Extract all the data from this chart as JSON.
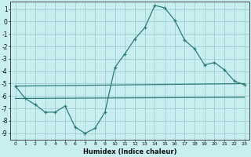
{
  "xlabel": "Humidex (Indice chaleur)",
  "background_color": "#c8eef0",
  "grid_color": "#9ecece",
  "line_color": "#2e7d72",
  "xlim": [
    -0.5,
    23.5
  ],
  "ylim": [
    -9.5,
    1.6
  ],
  "yticks": [
    1,
    0,
    -1,
    -2,
    -3,
    -4,
    -5,
    -6,
    -7,
    -8,
    -9
  ],
  "xticks": [
    0,
    1,
    2,
    3,
    4,
    5,
    6,
    7,
    8,
    9,
    10,
    11,
    12,
    13,
    14,
    15,
    16,
    17,
    18,
    19,
    20,
    21,
    22,
    23
  ],
  "line1_x": [
    0,
    1,
    2,
    3,
    4,
    5,
    6,
    7,
    8,
    9,
    10,
    11,
    12,
    13,
    14,
    15,
    16,
    17,
    18,
    19,
    20,
    21,
    22,
    23
  ],
  "line1_y": [
    -5.2,
    -6.2,
    -6.7,
    -7.3,
    -7.3,
    -6.8,
    -8.5,
    -9.0,
    -8.6,
    -7.3,
    -3.7,
    -2.6,
    -1.4,
    -0.5,
    1.3,
    1.1,
    0.1,
    -1.5,
    -2.2,
    -3.5,
    -3.3,
    -3.9,
    -4.8,
    -5.1
  ],
  "line2_x": [
    0,
    23
  ],
  "line2_y": [
    -5.2,
    -5.0
  ],
  "line3_x": [
    0,
    23
  ],
  "line3_y": [
    -6.2,
    -6.1
  ]
}
